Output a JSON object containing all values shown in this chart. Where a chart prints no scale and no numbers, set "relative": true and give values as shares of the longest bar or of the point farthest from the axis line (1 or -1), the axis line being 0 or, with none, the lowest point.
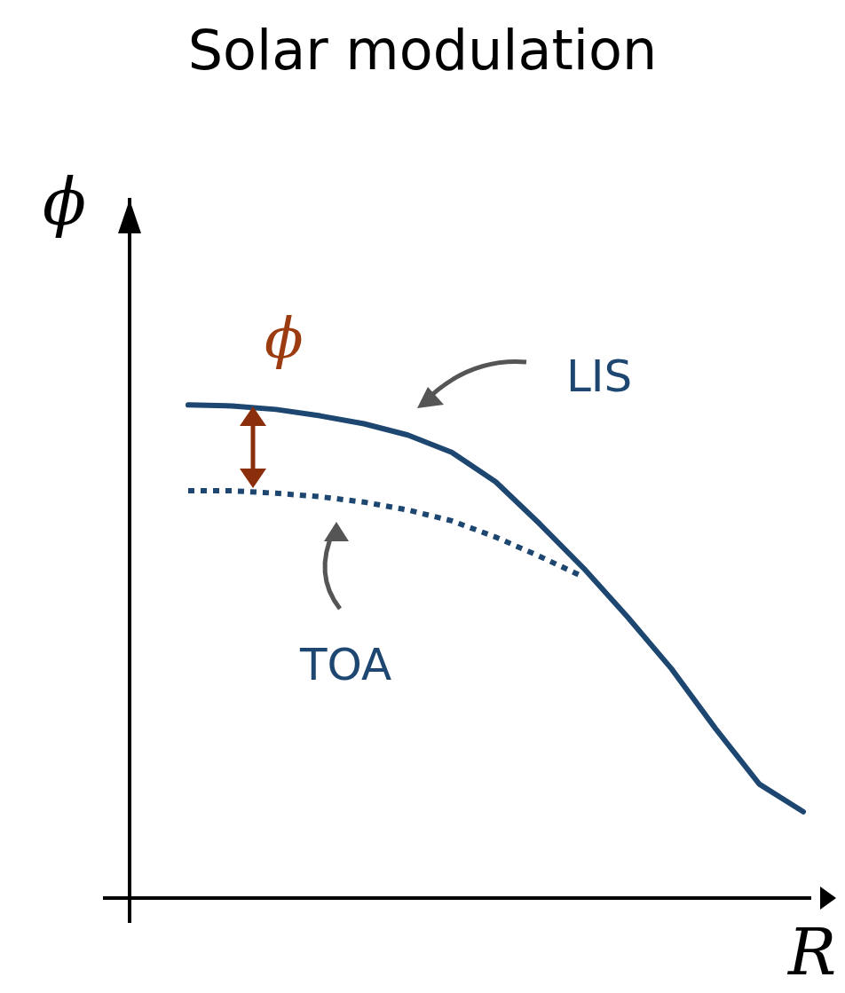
{
  "chart_data": {
    "type": "line",
    "title": "Solar modulation",
    "xlabel": "R",
    "ylabel": "ϕ",
    "relative": true,
    "marker": "none",
    "categories": [
      null,
      null,
      null,
      null,
      null,
      null,
      null,
      null,
      null,
      null,
      null,
      null,
      null,
      null,
      null
    ],
    "series": [
      {
        "name": "LIS",
        "color": "#1d4670",
        "line_style": "solid",
        "values": [
          1,
          0.998,
          0.991,
          0.978,
          0.962,
          0.939,
          0.904,
          0.844,
          0.759,
          0.669,
          0.57,
          0.465,
          0.344,
          0.231,
          0.175
        ]
      },
      {
        "name": "TOA",
        "color": "#1d4670",
        "line_style": "dotted",
        "values": [
          0.826,
          0.826,
          0.821,
          0.814,
          0.803,
          0.787,
          0.765,
          0.732,
          0.693,
          0.651,
          null,
          null,
          null,
          null,
          null
        ]
      }
    ],
    "annotations": [
      "ϕ"
    ]
  }
}
